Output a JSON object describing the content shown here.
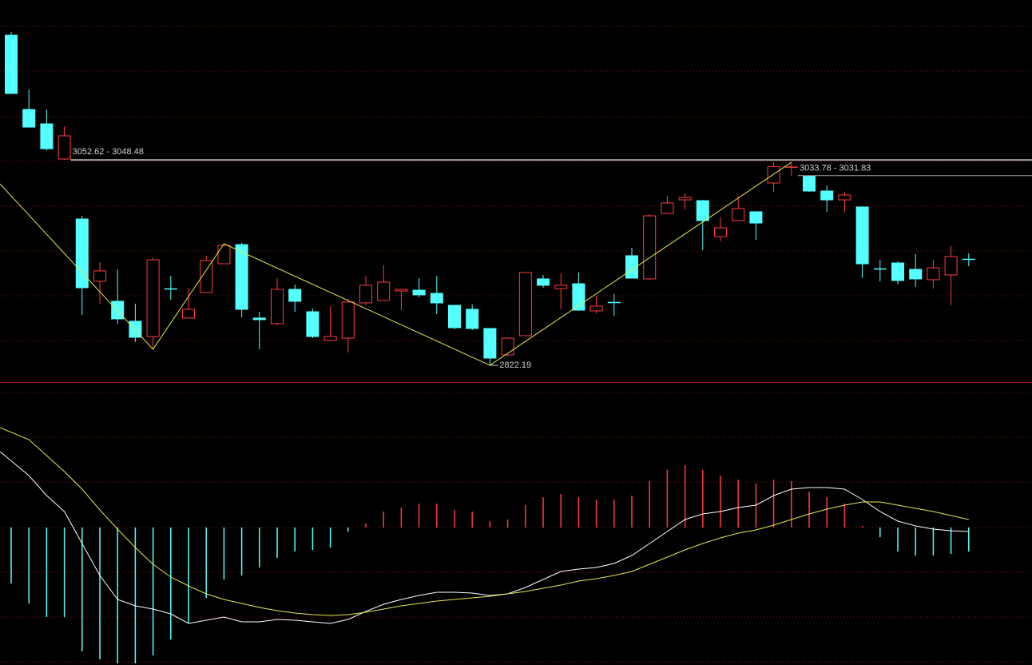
{
  "chart_data": [
    {
      "type": "candlestick",
      "up_color": "#ff3c3c",
      "down_color": "#54ffff",
      "ylim": [
        2803.4,
        3232
      ],
      "open": [
        3192.5,
        3109.2,
        3093.0,
        3053.6,
        2986.3,
        2916.4,
        2894.0,
        2871.6,
        2854.5,
        2908.3,
        2875.2,
        2903.8,
        2936.1,
        2957.6,
        2875.2,
        2868.9,
        2907.4,
        2882.3,
        2850.0,
        2852.7,
        2892.2,
        2894.9,
        2905.6,
        2906.5,
        2902.9,
        2889.5,
        2885.0,
        2863.5,
        2833.9,
        2855.4,
        2919.1,
        2908.3,
        2913.7,
        2883.2,
        2893.1,
        2945.1,
        2919.1,
        2992.6,
        3007.8,
        3006.9,
        2966.6,
        2984.5,
        2994.4,
        3026.7,
        3044.0,
        3034.7,
        3017.7,
        3007.8,
        2999.8,
        2930.7,
        2937.0,
        2929.8,
        2918.2,
        2923.6,
        2941.5
      ],
      "high": [
        3196.1,
        3131.6,
        3109.2,
        3090.3,
        2989.9,
        2937.9,
        2929.8,
        2891.3,
        2943.3,
        2922.7,
        2909.2,
        2945.1,
        2958.5,
        2959.4,
        2882.3,
        2920.0,
        2912.8,
        2885.9,
        2888.6,
        2896.7,
        2922.7,
        2934.3,
        2907.4,
        2920.0,
        2922.7,
        2889.5,
        2890.4,
        2863.5,
        2853.6,
        2927.2,
        2923.6,
        2925.4,
        2926.3,
        2900.3,
        2902.1,
        2954.1,
        2991.7,
        3012.3,
        3015.0,
        3007.8,
        2988.1,
        3012.3,
        2994.4,
        3050.0,
        3050.0,
        3034.7,
        3024.0,
        3016.8,
        2999.8,
        2940.6,
        2938.8,
        2946.9,
        2940.6,
        2955.8,
        2947.8
      ],
      "low": [
        3127.1,
        3089.4,
        3063.4,
        3052.6,
        2878.7,
        2891.3,
        2868.9,
        2848.3,
        2840.2,
        2895.8,
        2875.2,
        2903.8,
        2936.1,
        2876.1,
        2840.2,
        2867.1,
        2882.3,
        2852.7,
        2849.2,
        2836.6,
        2889.5,
        2894.9,
        2884.1,
        2898.5,
        2879.6,
        2862.6,
        2861.7,
        2822.19,
        2832.1,
        2855.4,
        2909.2,
        2885.0,
        2883.2,
        2880.5,
        2877.8,
        2920.0,
        2918.2,
        2991.7,
        2997.1,
        2951.4,
        2961.2,
        2984.5,
        2963.0,
        3016.8,
        3035.0,
        3016.8,
        2994.4,
        2993.5,
        2920.0,
        2916.4,
        2912.8,
        2910.1,
        2908.3,
        2889.5,
        2933.4
      ],
      "close": [
        3127.1,
        3089.4,
        3065.2,
        3079.6,
        2909.2,
        2928.1,
        2874.3,
        2853.6,
        2940.6,
        2907.4,
        2885.0,
        2939.7,
        2956.8,
        2885.0,
        2873.4,
        2907.4,
        2894.0,
        2854.5,
        2854.5,
        2893.1,
        2912.0,
        2915.5,
        2907.4,
        2901.2,
        2892.2,
        2864.4,
        2863.5,
        2830.3,
        2852.7,
        2926.3,
        2912.0,
        2912.0,
        2884.1,
        2888.6,
        2892.2,
        2920.0,
        2989.9,
        3004.3,
        3010.5,
        2984.5,
        2976.5,
        2998.0,
        2981.8,
        3045.0,
        3045.0,
        3017.7,
        3007.8,
        3013.2,
        2936.1,
        2929.8,
        2917.3,
        2919.1,
        2931.6,
        2944.2,
        2940.6
      ],
      "annotations": [
        "3052.62 - 3048.48",
        "3033.78 - 3031.83",
        "2822.19"
      ]
    },
    {
      "type": "macd",
      "ylim": [
        -17.2,
        18.2
      ],
      "up_color": "#ff3c3c",
      "down_color": "#54ffff",
      "values": [
        -7.0,
        -9.5,
        -11.2,
        -11.2,
        -15.5,
        -16.5,
        -17.0,
        -17.0,
        -16.0,
        -14.0,
        -12.0,
        -8.8,
        -6.5,
        -6.0,
        -5.0,
        -3.8,
        -3.0,
        -2.8,
        -2.5,
        -0.5,
        0.5,
        2.0,
        2.5,
        3.0,
        3.0,
        2.2,
        2.0,
        0.8,
        1.0,
        2.8,
        3.8,
        4.2,
        3.8,
        3.5,
        3.5,
        4.0,
        5.8,
        7.2,
        7.8,
        7.2,
        6.5,
        6.0,
        5.5,
        6.0,
        5.8,
        4.5,
        3.8,
        3.0,
        0.2,
        -1.2,
        -3.0,
        -3.5,
        -3.5,
        -3.3,
        -3.0
      ],
      "series": [
        {
          "color": "#ffffff",
          "values": [
            9.5,
            6.5,
            4.0,
            2.0,
            -2.0,
            -6.0,
            -9.0,
            -9.8,
            -10.2,
            -10.8,
            -12.0,
            -11.6,
            -11.2,
            -11.8,
            -11.8,
            -11.5,
            -11.6,
            -11.8,
            -12.0,
            -11.5,
            -10.5,
            -9.6,
            -9.0,
            -8.5,
            -8.1,
            -8.1,
            -8.2,
            -8.5,
            -8.3,
            -7.5,
            -6.5,
            -5.5,
            -5.2,
            -5.0,
            -4.5,
            -3.5,
            -2.0,
            -0.5,
            1.0,
            1.7,
            2.0,
            2.5,
            2.8,
            4.0,
            4.8,
            5.0,
            5.0,
            4.8,
            3.5,
            2.0,
            0.8,
            0.2,
            -0.2,
            -0.4,
            -0.5
          ]
        },
        {
          "color": "#e6e650",
          "values": [
            12.5,
            11.0,
            9.0,
            7.0,
            4.8,
            2.2,
            -0.2,
            -2.5,
            -4.6,
            -6.2,
            -7.3,
            -8.3,
            -9.0,
            -9.5,
            -10.0,
            -10.4,
            -10.7,
            -10.9,
            -11.0,
            -10.9,
            -10.6,
            -10.2,
            -9.8,
            -9.5,
            -9.2,
            -9.0,
            -8.8,
            -8.6,
            -8.3,
            -8.0,
            -7.6,
            -7.2,
            -6.7,
            -6.4,
            -6.0,
            -5.5,
            -4.6,
            -3.7,
            -2.8,
            -2.0,
            -1.3,
            -0.7,
            -0.3,
            0.3,
            1.0,
            1.7,
            2.3,
            2.8,
            3.2,
            3.2,
            2.8,
            2.4,
            2.0,
            1.5,
            1.0
          ]
        }
      ]
    }
  ]
}
